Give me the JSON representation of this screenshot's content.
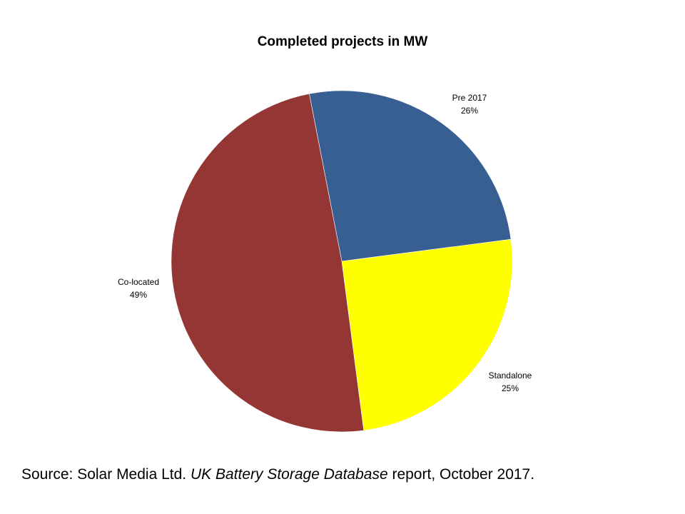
{
  "chart_data": {
    "type": "pie",
    "title": "Completed projects in MW",
    "slices": [
      {
        "label": "Pre 2017",
        "value": 26,
        "value_label": "26%",
        "color": "#375f91"
      },
      {
        "label": "Standalone",
        "value": 25,
        "value_label": "25%",
        "color": "#ffff00"
      },
      {
        "label": "Co-located",
        "value": 49,
        "value_label": "49%",
        "color": "#943634"
      }
    ],
    "legend": "none",
    "labels_outside": true
  },
  "source": {
    "prefix": "Source: Solar Media Ltd. ",
    "publication": "UK Battery Storage Database",
    "suffix": " report, October 2017."
  }
}
